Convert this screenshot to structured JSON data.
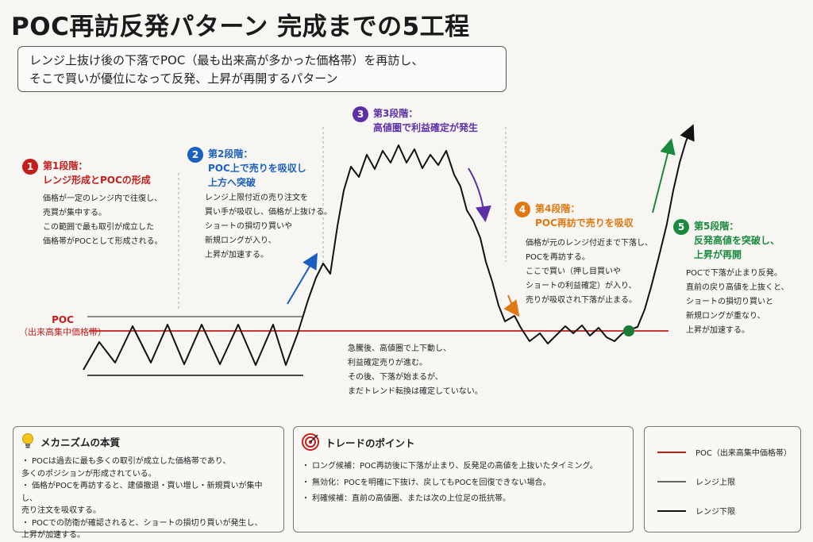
{
  "title": "POC再訪反発パターン 完成までの5工程",
  "subtitle": {
    "line1": "レンジ上抜け後の下落でPOC（最も出来高が多かった価格帯）を再訪し、",
    "line2": "そこで買いが優位になって反発、上昇が再開するパターン"
  },
  "poc_label": {
    "main": "POC",
    "sub": "（出来高集中価格帯）"
  },
  "stages": [
    {
      "num": "1",
      "title": "第1段階：\nレンジ形成とPOCの形成",
      "color": "#c41d1d",
      "desc": "価格が一定のレンジ内で往復し、\n売買が集中する。\nこの範囲で最も取引が成立した\n価格帯がPOCとして形成される。"
    },
    {
      "num": "2",
      "title": "第2段階：\nPOC上で売りを吸収し\n上方へ突破",
      "color": "#1b5fc2",
      "desc": "レンジ上限付近の売り注文を\n買い手が吸収し、価格が上抜ける。\nショートの損切り買いや\n新規ロングが入り、\n上昇が加速する。"
    },
    {
      "num": "3",
      "title": "第3段階：\n高値圏で利益確定が発生",
      "color": "#5b2fa8",
      "desc": ""
    },
    {
      "num": "4",
      "title": "第4段階：\nPOC再訪で売りを吸収",
      "color": "#e07812",
      "desc": "価格が元のレンジ付近まで下落し、\nPOCを再訪する。\nここで買い（押し目買いや\nショートの利益確定）が入り、\n売りが吸収され下落が止まる。"
    },
    {
      "num": "5",
      "title": "第5段階：\n反発高値を突破し、\n上昇が再開",
      "color": "#1a8a3e",
      "desc": "POCで下落が止まり反発。\n直前の戻り高値を上抜くと、\nショートの損切り買いと\n新規ロングが重なり、\n上昇が加速する。"
    }
  ],
  "mid_note": "急騰後、高値圏で上下動し、\n利益確定売りが進む。\nその後、下落が始まるが、\nまだトレンド転換は確定していない。",
  "panels": {
    "mechanism": {
      "icon": "lightbulb-icon",
      "title": "メカニズムの本質",
      "items": [
        "POCは過去に最も多くの取引が成立した価格帯であり、\n多くのポジションが形成されている。",
        "価格がPOCを再訪すると、建値撤退・買い増し・新規買いが集中し、\n売り注文を吸収する。",
        "POCでの防衛が確認されると、ショートの損切り買いが発生し、\n上昇が加速する。"
      ]
    },
    "trade": {
      "icon": "target-icon",
      "title": "トレードのポイント",
      "items": [
        "ロング候補：POC再訪後に下落が止まり、反発足の高値を上抜いたタイミング。",
        "無効化：POCを明確に下抜け、戻してもPOCを回復できない場合。",
        "利確候補：直前の高値圏、または次の上位足の抵抗帯。"
      ]
    },
    "legend": [
      {
        "label": "POC（出来高集中価格帯）",
        "color": "#c41d1d",
        "kind": "poc"
      },
      {
        "label": "レンジ上限",
        "color": "#666666",
        "kind": "upper"
      },
      {
        "label": "レンジ下限",
        "color": "#111111",
        "kind": "lower"
      }
    ]
  },
  "colors": {
    "poc": "#c41d1d",
    "price": "#111111",
    "range": "#555555"
  }
}
